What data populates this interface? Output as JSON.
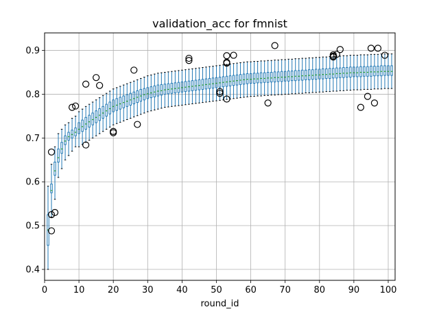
{
  "chart_data": {
    "type": "box",
    "title": "validation_acc for fmnist",
    "xlabel": "round_id",
    "ylabel": "",
    "xlim": [
      0,
      102
    ],
    "ylim": [
      0.375,
      0.94
    ],
    "xticks": [
      0,
      10,
      20,
      30,
      40,
      50,
      60,
      70,
      80,
      90,
      100
    ],
    "yticks": [
      0.4,
      0.5,
      0.6,
      0.7,
      0.8,
      0.9
    ],
    "ytick_labels": [
      "0.4",
      "0.5",
      "0.6",
      "0.7",
      "0.8",
      "0.9"
    ],
    "grid": true,
    "colors": {
      "box": "#1f77b4",
      "median": "#2ca02c",
      "grid": "#b0b0b0",
      "flier": "#000000"
    },
    "rounds": [
      1,
      2,
      3,
      4,
      5,
      6,
      7,
      8,
      9,
      10,
      11,
      12,
      13,
      14,
      15,
      16,
      17,
      18,
      19,
      20,
      21,
      22,
      23,
      24,
      25,
      26,
      27,
      28,
      29,
      30,
      31,
      32,
      33,
      34,
      35,
      36,
      37,
      38,
      39,
      40,
      41,
      42,
      43,
      44,
      45,
      46,
      47,
      48,
      49,
      50,
      51,
      52,
      53,
      54,
      55,
      56,
      57,
      58,
      59,
      60,
      61,
      62,
      63,
      64,
      65,
      66,
      67,
      68,
      69,
      70,
      71,
      72,
      73,
      74,
      75,
      76,
      77,
      78,
      79,
      80,
      81,
      82,
      83,
      84,
      85,
      86,
      87,
      88,
      89,
      90,
      91,
      92,
      93,
      94,
      95,
      96,
      97,
      98,
      99,
      100,
      101
    ],
    "q1": [
      0.455,
      0.575,
      0.615,
      0.645,
      0.665,
      0.685,
      0.695,
      0.7,
      0.705,
      0.71,
      0.715,
      0.72,
      0.725,
      0.73,
      0.735,
      0.74,
      0.745,
      0.75,
      0.755,
      0.76,
      0.763,
      0.766,
      0.769,
      0.772,
      0.775,
      0.778,
      0.781,
      0.784,
      0.787,
      0.79,
      0.792,
      0.794,
      0.796,
      0.798,
      0.8,
      0.801,
      0.802,
      0.803,
      0.804,
      0.805,
      0.806,
      0.807,
      0.808,
      0.809,
      0.81,
      0.811,
      0.812,
      0.813,
      0.814,
      0.815,
      0.816,
      0.817,
      0.818,
      0.819,
      0.82,
      0.821,
      0.822,
      0.823,
      0.824,
      0.825,
      0.825,
      0.826,
      0.826,
      0.827,
      0.827,
      0.828,
      0.828,
      0.829,
      0.829,
      0.83,
      0.83,
      0.831,
      0.831,
      0.832,
      0.832,
      0.833,
      0.833,
      0.834,
      0.834,
      0.835,
      0.835,
      0.836,
      0.836,
      0.837,
      0.837,
      0.838,
      0.838,
      0.839,
      0.839,
      0.84,
      0.84,
      0.84,
      0.841,
      0.841,
      0.841,
      0.842,
      0.842,
      0.842,
      0.843,
      0.843,
      0.843
    ],
    "median": [
      0.49,
      0.58,
      0.625,
      0.655,
      0.675,
      0.693,
      0.703,
      0.708,
      0.713,
      0.72,
      0.726,
      0.732,
      0.737,
      0.742,
      0.747,
      0.752,
      0.757,
      0.762,
      0.767,
      0.772,
      0.775,
      0.778,
      0.781,
      0.784,
      0.787,
      0.79,
      0.793,
      0.796,
      0.799,
      0.801,
      0.803,
      0.805,
      0.807,
      0.808,
      0.81,
      0.811,
      0.812,
      0.813,
      0.814,
      0.815,
      0.816,
      0.817,
      0.818,
      0.819,
      0.82,
      0.821,
      0.822,
      0.823,
      0.824,
      0.825,
      0.826,
      0.827,
      0.828,
      0.829,
      0.83,
      0.831,
      0.832,
      0.833,
      0.834,
      0.834,
      0.835,
      0.835,
      0.836,
      0.836,
      0.837,
      0.837,
      0.838,
      0.838,
      0.839,
      0.839,
      0.84,
      0.84,
      0.841,
      0.841,
      0.842,
      0.842,
      0.843,
      0.843,
      0.844,
      0.844,
      0.845,
      0.845,
      0.846,
      0.846,
      0.847,
      0.847,
      0.848,
      0.848,
      0.849,
      0.849,
      0.849,
      0.85,
      0.85,
      0.85,
      0.851,
      0.851,
      0.851,
      0.852,
      0.852,
      0.852,
      0.852
    ],
    "q3": [
      0.525,
      0.595,
      0.645,
      0.675,
      0.69,
      0.705,
      0.713,
      0.718,
      0.723,
      0.735,
      0.741,
      0.747,
      0.752,
      0.757,
      0.762,
      0.767,
      0.772,
      0.777,
      0.782,
      0.787,
      0.79,
      0.793,
      0.796,
      0.799,
      0.802,
      0.805,
      0.808,
      0.811,
      0.813,
      0.815,
      0.817,
      0.819,
      0.821,
      0.822,
      0.823,
      0.824,
      0.825,
      0.826,
      0.827,
      0.828,
      0.829,
      0.83,
      0.831,
      0.832,
      0.833,
      0.834,
      0.835,
      0.836,
      0.837,
      0.838,
      0.839,
      0.84,
      0.841,
      0.842,
      0.843,
      0.844,
      0.845,
      0.846,
      0.847,
      0.847,
      0.848,
      0.848,
      0.849,
      0.849,
      0.85,
      0.85,
      0.851,
      0.851,
      0.852,
      0.852,
      0.853,
      0.853,
      0.854,
      0.854,
      0.855,
      0.855,
      0.856,
      0.856,
      0.857,
      0.857,
      0.858,
      0.858,
      0.859,
      0.859,
      0.86,
      0.86,
      0.861,
      0.861,
      0.862,
      0.862,
      0.862,
      0.863,
      0.863,
      0.863,
      0.864,
      0.864,
      0.864,
      0.865,
      0.865,
      0.865,
      0.865
    ],
    "whisker_low": [
      0.4,
      0.52,
      0.56,
      0.61,
      0.63,
      0.65,
      0.66,
      0.67,
      0.68,
      0.68,
      0.685,
      0.69,
      0.695,
      0.7,
      0.705,
      0.71,
      0.715,
      0.72,
      0.725,
      0.73,
      0.733,
      0.736,
      0.739,
      0.742,
      0.745,
      0.748,
      0.751,
      0.754,
      0.757,
      0.76,
      0.762,
      0.764,
      0.766,
      0.768,
      0.77,
      0.771,
      0.772,
      0.773,
      0.774,
      0.775,
      0.776,
      0.777,
      0.778,
      0.779,
      0.78,
      0.781,
      0.782,
      0.783,
      0.784,
      0.785,
      0.786,
      0.787,
      0.788,
      0.789,
      0.79,
      0.791,
      0.792,
      0.793,
      0.794,
      0.795,
      0.795,
      0.796,
      0.796,
      0.797,
      0.797,
      0.798,
      0.798,
      0.799,
      0.799,
      0.8,
      0.8,
      0.801,
      0.801,
      0.802,
      0.802,
      0.803,
      0.803,
      0.804,
      0.804,
      0.805,
      0.805,
      0.806,
      0.806,
      0.807,
      0.807,
      0.808,
      0.808,
      0.809,
      0.809,
      0.81,
      0.81,
      0.81,
      0.811,
      0.811,
      0.811,
      0.812,
      0.812,
      0.812,
      0.813,
      0.813,
      0.813
    ],
    "whisker_high": [
      0.59,
      0.64,
      0.68,
      0.71,
      0.72,
      0.73,
      0.735,
      0.745,
      0.75,
      0.76,
      0.766,
      0.772,
      0.777,
      0.782,
      0.787,
      0.792,
      0.797,
      0.802,
      0.807,
      0.812,
      0.815,
      0.818,
      0.821,
      0.824,
      0.827,
      0.83,
      0.833,
      0.836,
      0.839,
      0.842,
      0.844,
      0.846,
      0.848,
      0.849,
      0.85,
      0.851,
      0.852,
      0.853,
      0.854,
      0.855,
      0.856,
      0.857,
      0.858,
      0.859,
      0.86,
      0.861,
      0.862,
      0.863,
      0.864,
      0.865,
      0.866,
      0.867,
      0.868,
      0.869,
      0.87,
      0.871,
      0.872,
      0.873,
      0.874,
      0.874,
      0.875,
      0.875,
      0.876,
      0.876,
      0.877,
      0.877,
      0.878,
      0.878,
      0.879,
      0.879,
      0.88,
      0.88,
      0.881,
      0.881,
      0.882,
      0.882,
      0.883,
      0.883,
      0.884,
      0.884,
      0.885,
      0.885,
      0.886,
      0.886,
      0.887,
      0.887,
      0.888,
      0.888,
      0.889,
      0.889,
      0.889,
      0.89,
      0.89,
      0.89,
      0.891,
      0.891,
      0.891,
      0.892,
      0.892,
      0.892,
      0.892
    ],
    "outliers": [
      {
        "x": 2,
        "y": 0.668
      },
      {
        "x": 2,
        "y": 0.525
      },
      {
        "x": 2,
        "y": 0.488
      },
      {
        "x": 3,
        "y": 0.53
      },
      {
        "x": 8,
        "y": 0.77
      },
      {
        "x": 9,
        "y": 0.773
      },
      {
        "x": 12,
        "y": 0.823
      },
      {
        "x": 12,
        "y": 0.684
      },
      {
        "x": 15,
        "y": 0.838
      },
      {
        "x": 16,
        "y": 0.82
      },
      {
        "x": 20,
        "y": 0.715
      },
      {
        "x": 20,
        "y": 0.712
      },
      {
        "x": 26,
        "y": 0.855
      },
      {
        "x": 27,
        "y": 0.731
      },
      {
        "x": 42,
        "y": 0.882
      },
      {
        "x": 42,
        "y": 0.877
      },
      {
        "x": 51,
        "y": 0.806
      },
      {
        "x": 51,
        "y": 0.802
      },
      {
        "x": 53,
        "y": 0.888
      },
      {
        "x": 53,
        "y": 0.873
      },
      {
        "x": 53,
        "y": 0.871
      },
      {
        "x": 53,
        "y": 0.789
      },
      {
        "x": 55,
        "y": 0.889
      },
      {
        "x": 65,
        "y": 0.78
      },
      {
        "x": 67,
        "y": 0.911
      },
      {
        "x": 84,
        "y": 0.89
      },
      {
        "x": 84,
        "y": 0.887
      },
      {
        "x": 84,
        "y": 0.885
      },
      {
        "x": 85,
        "y": 0.891
      },
      {
        "x": 86,
        "y": 0.902
      },
      {
        "x": 92,
        "y": 0.77
      },
      {
        "x": 94,
        "y": 0.795
      },
      {
        "x": 95,
        "y": 0.905
      },
      {
        "x": 96,
        "y": 0.78
      },
      {
        "x": 97,
        "y": 0.905
      },
      {
        "x": 99,
        "y": 0.889
      }
    ]
  }
}
